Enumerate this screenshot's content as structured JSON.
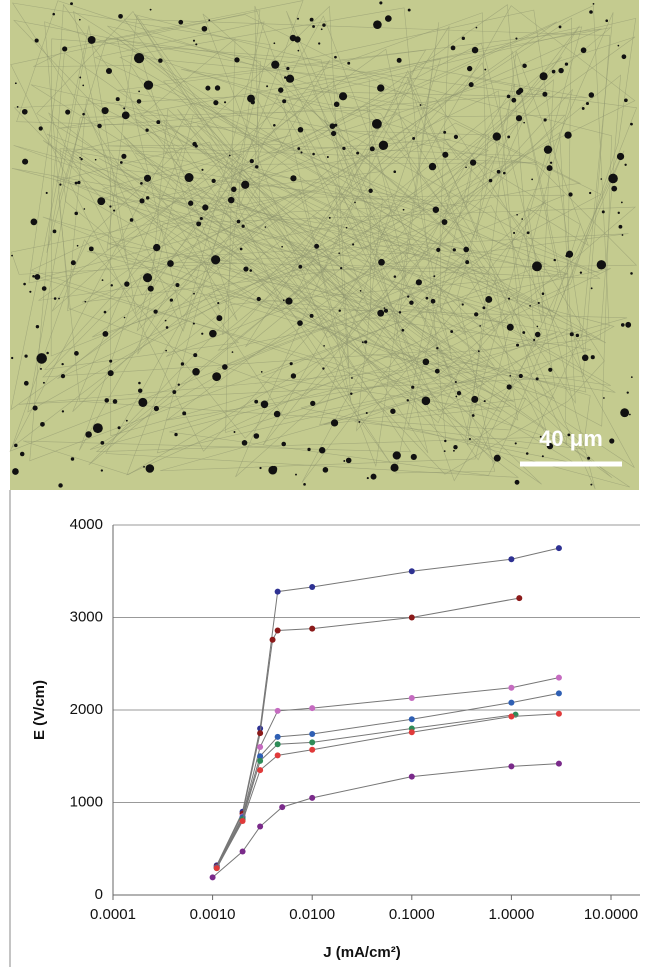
{
  "micrograph": {
    "scale_bar_label": "40 μm"
  },
  "chart_data": {
    "type": "line",
    "x_label": "J (mA/cm²)",
    "y_label": "E (V/cm)",
    "xscale": "log",
    "grid": true,
    "xlim": [
      0.0001,
      10
    ],
    "ylim": [
      0,
      4000
    ],
    "xticks": [
      {
        "value": 0.0001,
        "label": "0.0001"
      },
      {
        "value": 0.001,
        "label": "0.0010"
      },
      {
        "value": 0.01,
        "label": "0.0100"
      },
      {
        "value": 0.1,
        "label": "0.1000"
      },
      {
        "value": 1,
        "label": "1.0000"
      },
      {
        "value": 10,
        "label": "10.0000"
      }
    ],
    "yticks": [
      0,
      1000,
      2000,
      3000,
      4000
    ],
    "series": [
      {
        "color": "#2e3192",
        "x": [
          0.0011,
          0.002,
          0.003,
          0.0045,
          0.01,
          0.1,
          1,
          3
        ],
        "values": [
          320,
          900,
          1800,
          3280,
          3330,
          3500,
          3630,
          3750
        ]
      },
      {
        "color": "#8b1a1a",
        "x": [
          0.0011,
          0.002,
          0.003,
          0.004,
          0.0045,
          0.01,
          0.1,
          1.2
        ],
        "values": [
          310,
          880,
          1750,
          2760,
          2860,
          2880,
          3000,
          3210
        ]
      },
      {
        "color": "#c56bc0",
        "x": [
          0.0011,
          0.002,
          0.003,
          0.0045,
          0.01,
          0.1,
          1,
          3
        ],
        "values": [
          300,
          850,
          1600,
          1990,
          2020,
          2130,
          2240,
          2350
        ]
      },
      {
        "color": "#2f5fb3",
        "x": [
          0.0011,
          0.002,
          0.003,
          0.0045,
          0.01,
          0.1,
          1,
          3
        ],
        "values": [
          300,
          840,
          1500,
          1710,
          1740,
          1900,
          2080,
          2180
        ]
      },
      {
        "color": "#2e8b57",
        "x": [
          0.0011,
          0.002,
          0.003,
          0.0045,
          0.01,
          0.1,
          1.1
        ],
        "values": [
          290,
          820,
          1450,
          1630,
          1650,
          1800,
          1950
        ]
      },
      {
        "color": "#e03a3a",
        "x": [
          0.0011,
          0.002,
          0.003,
          0.0045,
          0.01,
          0.1,
          1,
          3
        ],
        "values": [
          290,
          800,
          1350,
          1510,
          1570,
          1760,
          1930,
          1960
        ]
      },
      {
        "color": "#7a2a8a",
        "x": [
          0.001,
          0.002,
          0.003,
          0.005,
          0.01,
          0.1,
          1,
          3
        ],
        "values": [
          190,
          470,
          740,
          950,
          1050,
          1280,
          1390,
          1420
        ]
      }
    ]
  }
}
